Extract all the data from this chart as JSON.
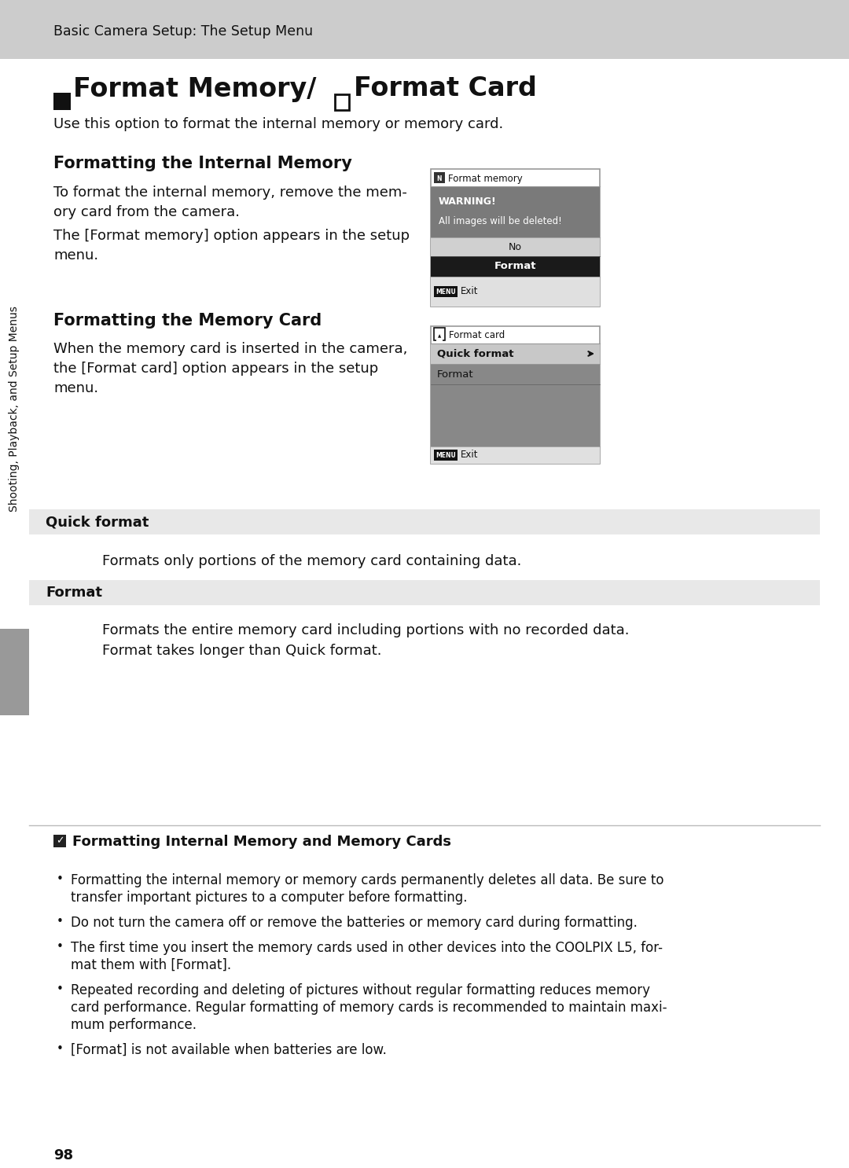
{
  "bg_color": "#ffffff",
  "header_bg": "#cccccc",
  "header_text": "Basic Camera Setup: The Setup Menu",
  "subtitle_text": "Use this option to format the internal memory or memory card.",
  "section1_title": "Formatting the Internal Memory",
  "section2_title": "Formatting the Memory Card",
  "sidebar_text": "Shooting, Playback, and Setup Menus",
  "qf_label": "Quick format",
  "qf_desc": "Formats only portions of the memory card containing data.",
  "fmt_label": "Format",
  "fmt_desc1": "Formats the entire memory card including portions with no recorded data.",
  "fmt_desc2": "Format takes longer than Quick format.",
  "note_title": "Formatting Internal Memory and Memory Cards",
  "bullets": [
    "Formatting the internal memory or memory cards permanently deletes all data. Be sure to\ntransfer important pictures to a computer before formatting.",
    "Do not turn the camera off or remove the batteries or memory card during formatting.",
    "The first time you insert the memory cards used in other devices into the COOLPIX L5, for-\nmat them with [Format].",
    "Repeated recording and deleting of pictures without regular formatting reduces memory\ncard performance. Regular formatting of memory cards is recommended to maintain maxi-\nmum performance.",
    "[Format] is not available when batteries are low."
  ],
  "page_number": "98",
  "light_gray": "#e8e8e8",
  "menu_border": "#999999",
  "warn_gray": "#7a7a7a",
  "dark_sel": "#1a1a1a",
  "mid_gray": "#888888",
  "no_gray": "#d0d0d0",
  "exit_gray": "#e0e0e0",
  "qf_highlight": "#c8c8c8"
}
